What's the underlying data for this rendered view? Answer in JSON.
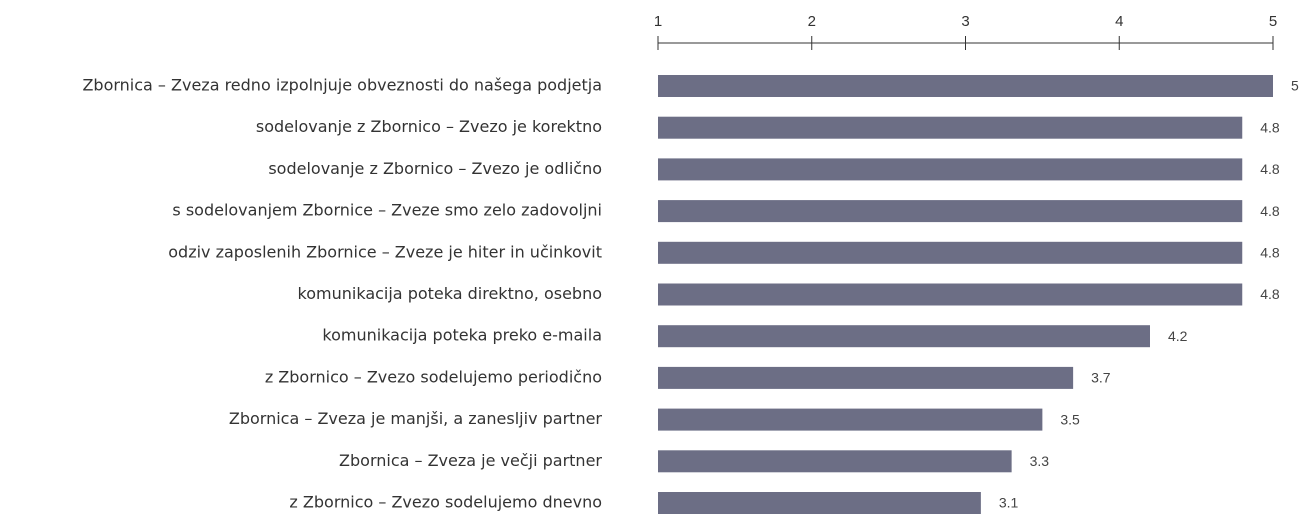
{
  "chart_data": {
    "type": "bar",
    "orientation": "horizontal",
    "categories": [
      "Zbornica – Zveza redno izpolnjuje obveznosti do našega podjetja",
      "sodelovanje z Zbornico – Zvezo je korektno",
      "sodelovanje z Zbornico – Zvezo je odlično",
      "s sodelovanjem Zbornice – Zveze smo zelo zadovoljni",
      "odziv zaposlenih Zbornice – Zveze je hiter in učinkovit",
      "komunikacija poteka direktno, osebno",
      "komunikacija poteka preko e-maila",
      "z Zbornico – Zvezo sodelujemo periodično",
      "Zbornica – Zveza je manjši, a zanesljiv partner",
      "Zbornica – Zveza je večji partner",
      "z Zbornico – Zvezo sodelujemo dnevno"
    ],
    "values": [
      5,
      4.8,
      4.8,
      4.8,
      4.8,
      4.8,
      4.2,
      3.7,
      3.5,
      3.3,
      3.1
    ],
    "color": "#6c6e85",
    "xlim": [
      1,
      5
    ],
    "xticks": [
      1,
      2,
      3,
      4,
      5
    ]
  }
}
